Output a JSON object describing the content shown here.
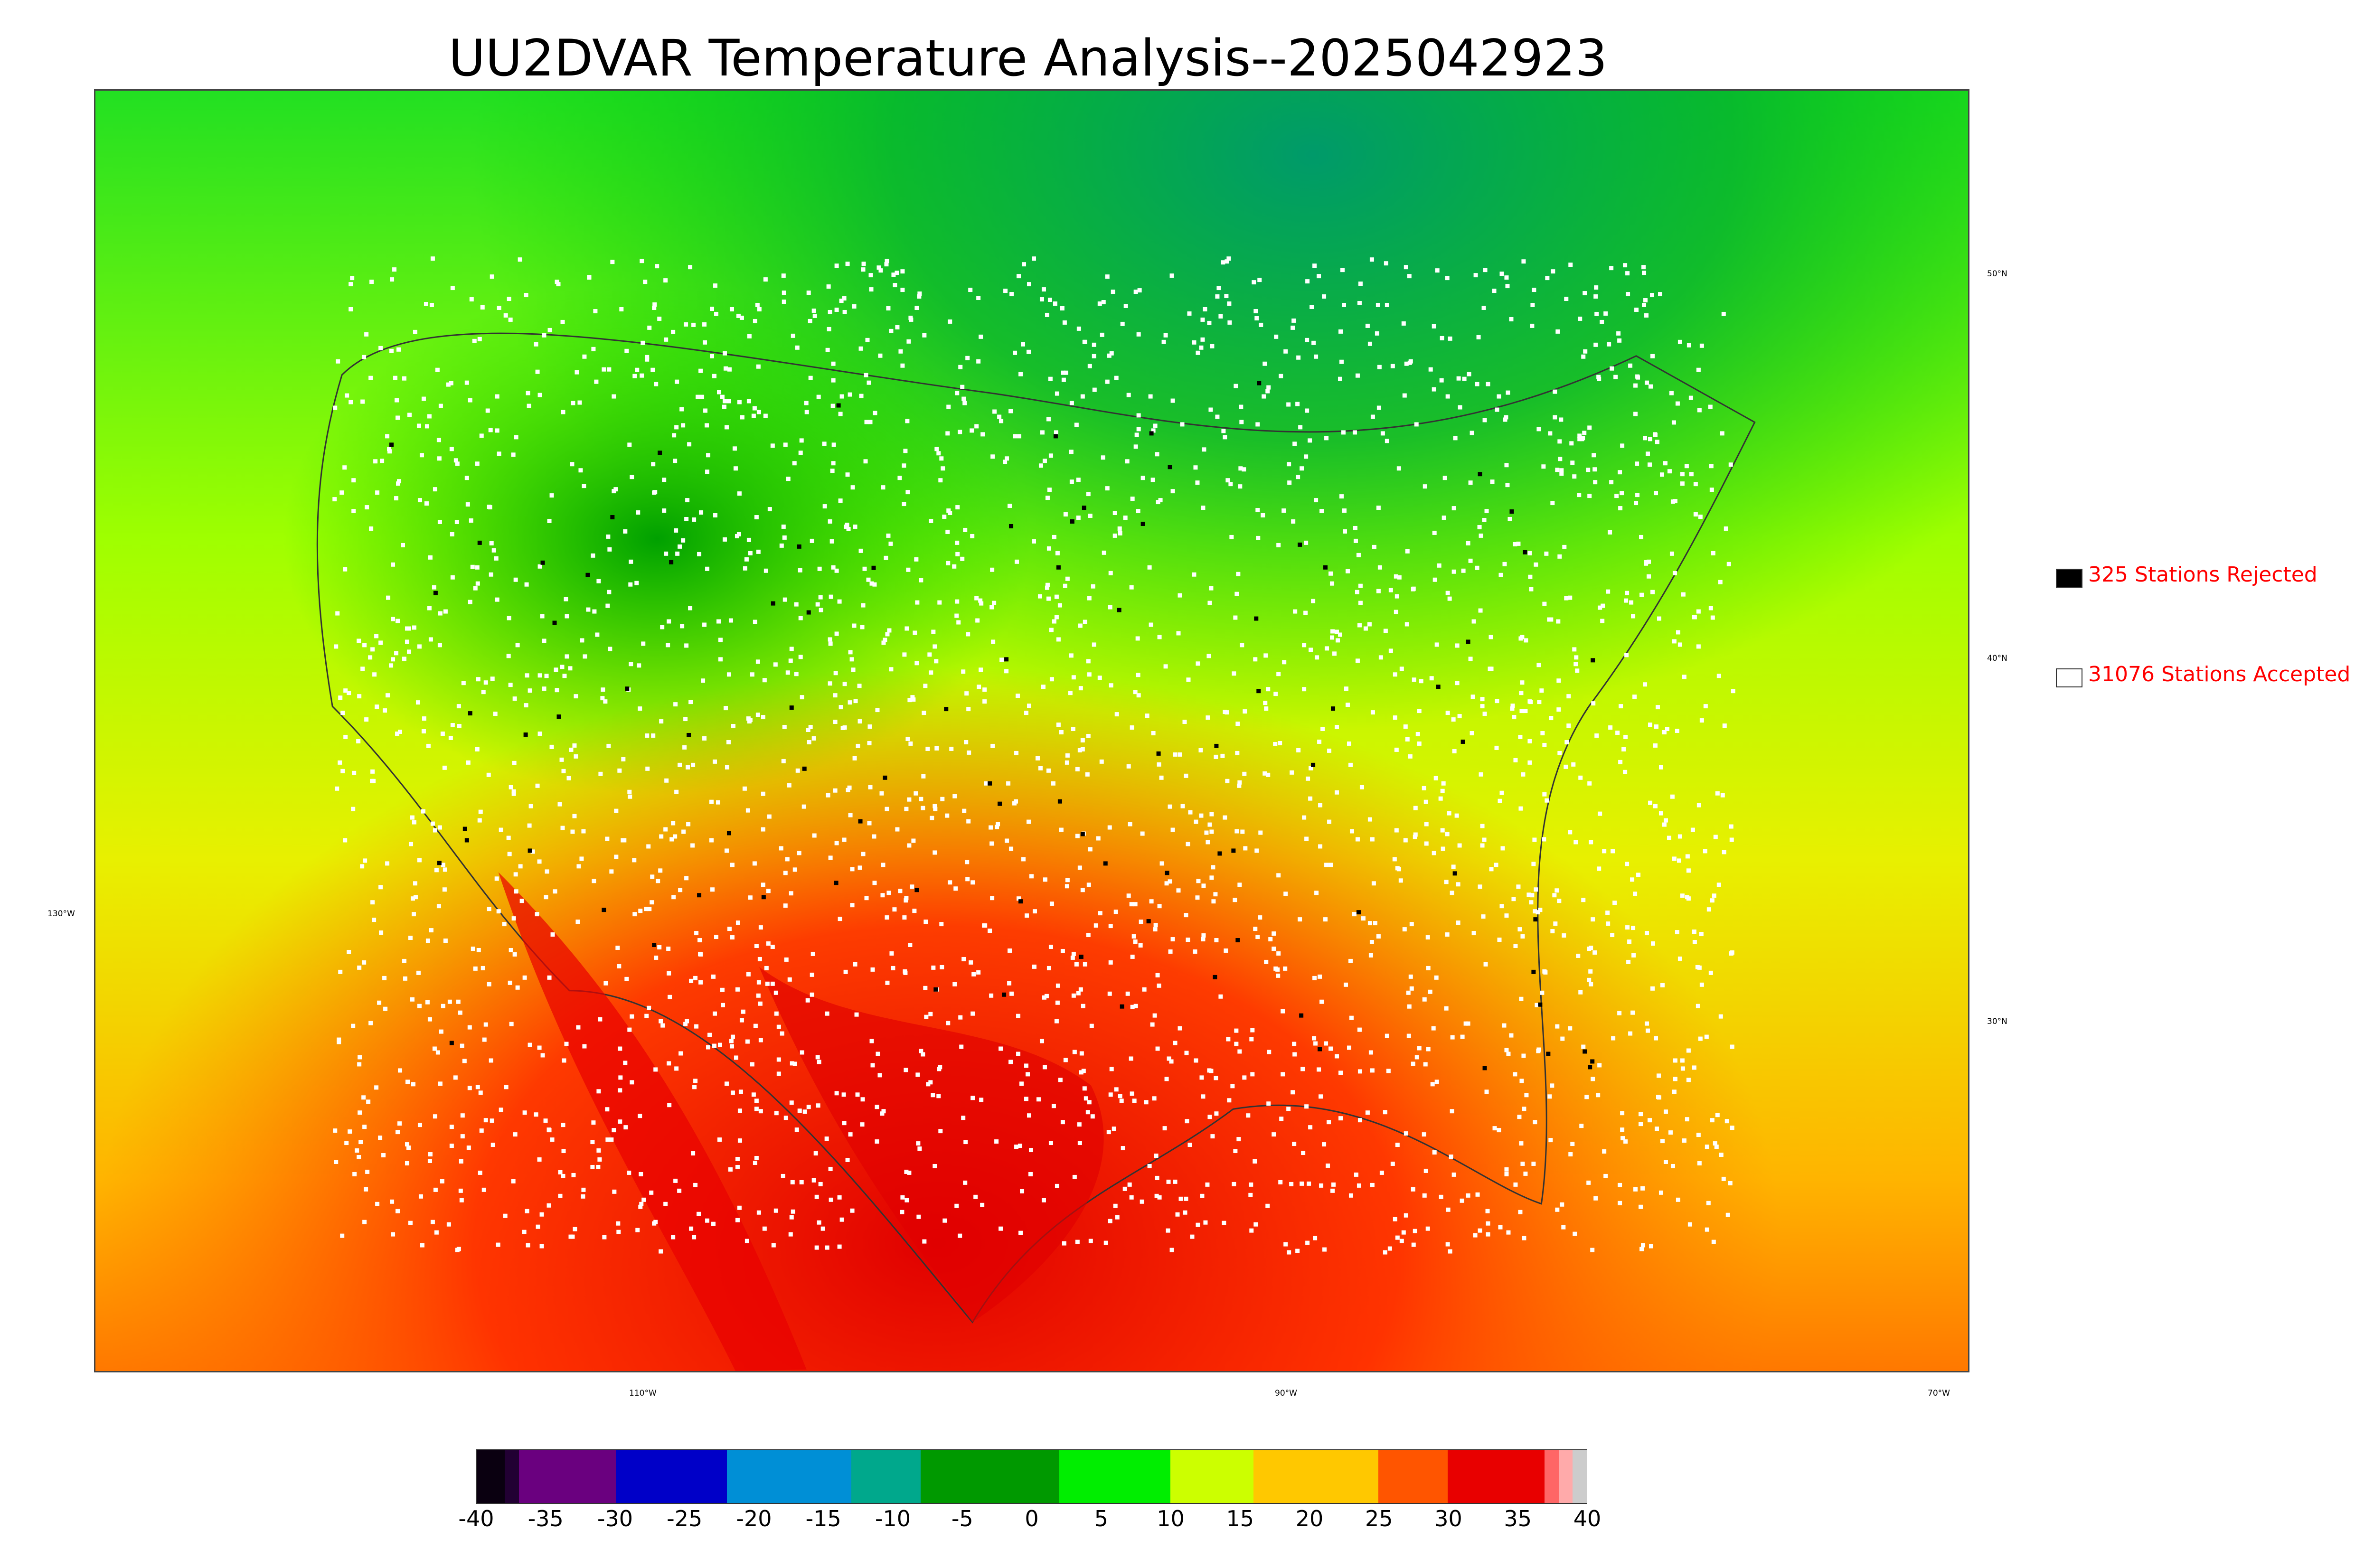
{
  "title": "UU2DVAR Temperature Analysis--2025042923",
  "map": {
    "lon_labels": [
      "110°W",
      "90°W",
      "70°W"
    ],
    "lat_labels": [
      "50°N",
      "40°N",
      "30°N"
    ],
    "left_label": "130°W"
  },
  "legend": {
    "rejected": {
      "label": "325 Stations Rejected",
      "color": "#000000"
    },
    "accepted": {
      "label": "31076 Stations Accepted",
      "color": "#ffffff"
    }
  },
  "colorbar": {
    "min": -40,
    "max": 40,
    "tick_labels": [
      "-40",
      "-35",
      "-30",
      "-25",
      "-20",
      "-15",
      "-10",
      "-5",
      "0",
      "5",
      "10",
      "15",
      "20",
      "25",
      "30",
      "35",
      "40"
    ],
    "colors": [
      {
        "from": -40,
        "to": -38,
        "color": "#0a0010"
      },
      {
        "from": -38,
        "to": -37,
        "color": "#220033"
      },
      {
        "from": -37,
        "to": -30,
        "color": "#6a007f"
      },
      {
        "from": -30,
        "to": -22,
        "color": "#0000c8"
      },
      {
        "from": -22,
        "to": -13,
        "color": "#008fd6"
      },
      {
        "from": -13,
        "to": -8,
        "color": "#00a88c"
      },
      {
        "from": -8,
        "to": 2,
        "color": "#009900"
      },
      {
        "from": 2,
        "to": 10,
        "color": "#00ee00"
      },
      {
        "from": 10,
        "to": 16,
        "color": "#ccff00"
      },
      {
        "from": 16,
        "to": 25,
        "color": "#ffc800"
      },
      {
        "from": 25,
        "to": 30,
        "color": "#ff5500"
      },
      {
        "from": 30,
        "to": 37,
        "color": "#e80000"
      },
      {
        "from": 37,
        "to": 38,
        "color": "#ff6666"
      },
      {
        "from": 38,
        "to": 39,
        "color": "#ffaaaa"
      },
      {
        "from": 39,
        "to": 40,
        "color": "#cccccc"
      }
    ]
  }
}
